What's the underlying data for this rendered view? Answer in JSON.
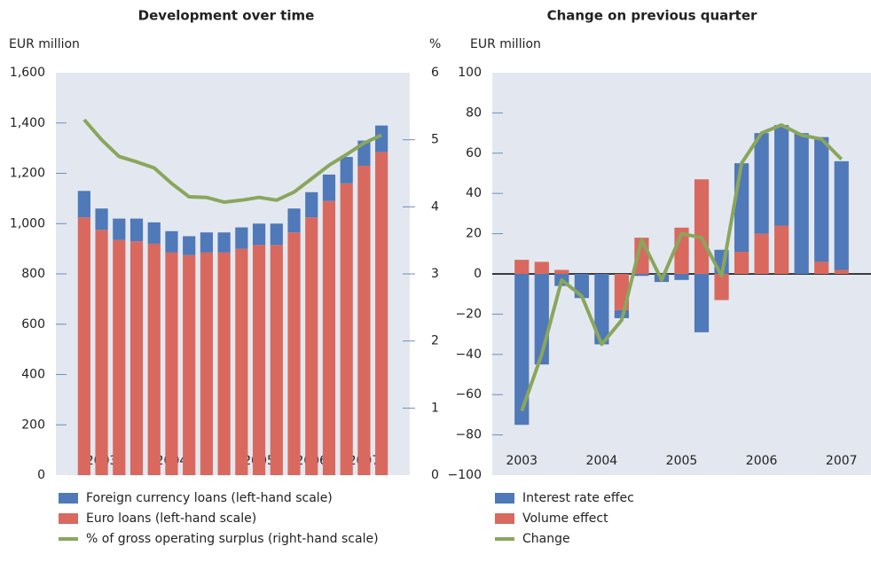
{
  "chart_data": [
    {
      "type": "bar",
      "stacked": true,
      "title": "Development over time",
      "y_label": "EUR million",
      "y2_label": "%",
      "categories": [
        null,
        "2003",
        null,
        null,
        null,
        "2004",
        null,
        null,
        null,
        null,
        "2005",
        null,
        null,
        "2006",
        null,
        null,
        "2007",
        null
      ],
      "series": [
        {
          "name": "Foreign currency loans (left-hand scale)",
          "color": "#4f79b8",
          "values": [
            105,
            85,
            85,
            90,
            85,
            85,
            75,
            80,
            80,
            85,
            85,
            85,
            95,
            100,
            105,
            105,
            100,
            105
          ]
        },
        {
          "name": "Euro loans (left-hand scale)",
          "color": "#d9695e",
          "values": [
            1025,
            975,
            935,
            930,
            920,
            885,
            875,
            885,
            885,
            900,
            915,
            915,
            965,
            1025,
            1090,
            1160,
            1230,
            1285
          ]
        },
        {
          "name": "% of gross operating surplus (right-hand scale)",
          "color": "#8aa65c",
          "type": "line",
          "axis": "y2",
          "values": [
            5.3,
            5.0,
            4.75,
            4.67,
            4.58,
            4.35,
            4.15,
            4.14,
            4.07,
            4.1,
            4.14,
            4.1,
            4.22,
            4.42,
            4.62,
            4.78,
            4.95,
            5.07
          ]
        }
      ],
      "ylim": [
        0,
        1600
      ],
      "yticks": [
        0,
        200,
        400,
        600,
        800,
        {
          "value": 1000,
          "label": "1,000"
        },
        {
          "value": 1200,
          "label": "1,200"
        },
        {
          "value": 1400,
          "label": "1,400"
        },
        {
          "value": 1600,
          "label": "1,600"
        }
      ],
      "y2lim": [
        0,
        6
      ],
      "y2ticks": [
        0,
        1,
        2,
        3,
        4,
        5,
        6
      ]
    },
    {
      "type": "bar",
      "stacked": true,
      "title": "Change on previous quarter",
      "y_label": "EUR million",
      "categories": [
        "2003",
        null,
        null,
        null,
        "2004",
        null,
        null,
        null,
        "2005",
        null,
        null,
        null,
        "2006",
        null,
        null,
        null,
        "2007"
      ],
      "series": [
        {
          "name": "Interest rate effec",
          "color": "#4f79b8",
          "values": [
            -75,
            -45,
            -6,
            -12,
            -35,
            -4,
            -1,
            -4,
            -3,
            -29,
            12,
            44,
            50,
            50,
            70,
            62,
            54
          ]
        },
        {
          "name": "Volume effect",
          "color": "#d9695e",
          "values": [
            7,
            6,
            2,
            0,
            0,
            -18,
            18,
            0,
            23,
            47,
            -13,
            11,
            20,
            24,
            0,
            6,
            2
          ]
        },
        {
          "name": "Change",
          "color": "#8aa65c",
          "type": "line",
          "values": [
            -68,
            -40,
            -3,
            -11,
            -35,
            -23,
            17,
            -3,
            20,
            18,
            -1,
            55,
            70,
            74,
            69,
            67,
            57
          ]
        }
      ],
      "ylim": [
        -100,
        100
      ],
      "yticks": [
        {
          "value": -100,
          "label": "−100"
        },
        {
          "value": -80,
          "label": "−80"
        },
        {
          "value": -60,
          "label": "−60"
        },
        {
          "value": -40,
          "label": "−40"
        },
        {
          "value": -20,
          "label": "−20"
        },
        0,
        20,
        40,
        60,
        80,
        100
      ]
    }
  ]
}
